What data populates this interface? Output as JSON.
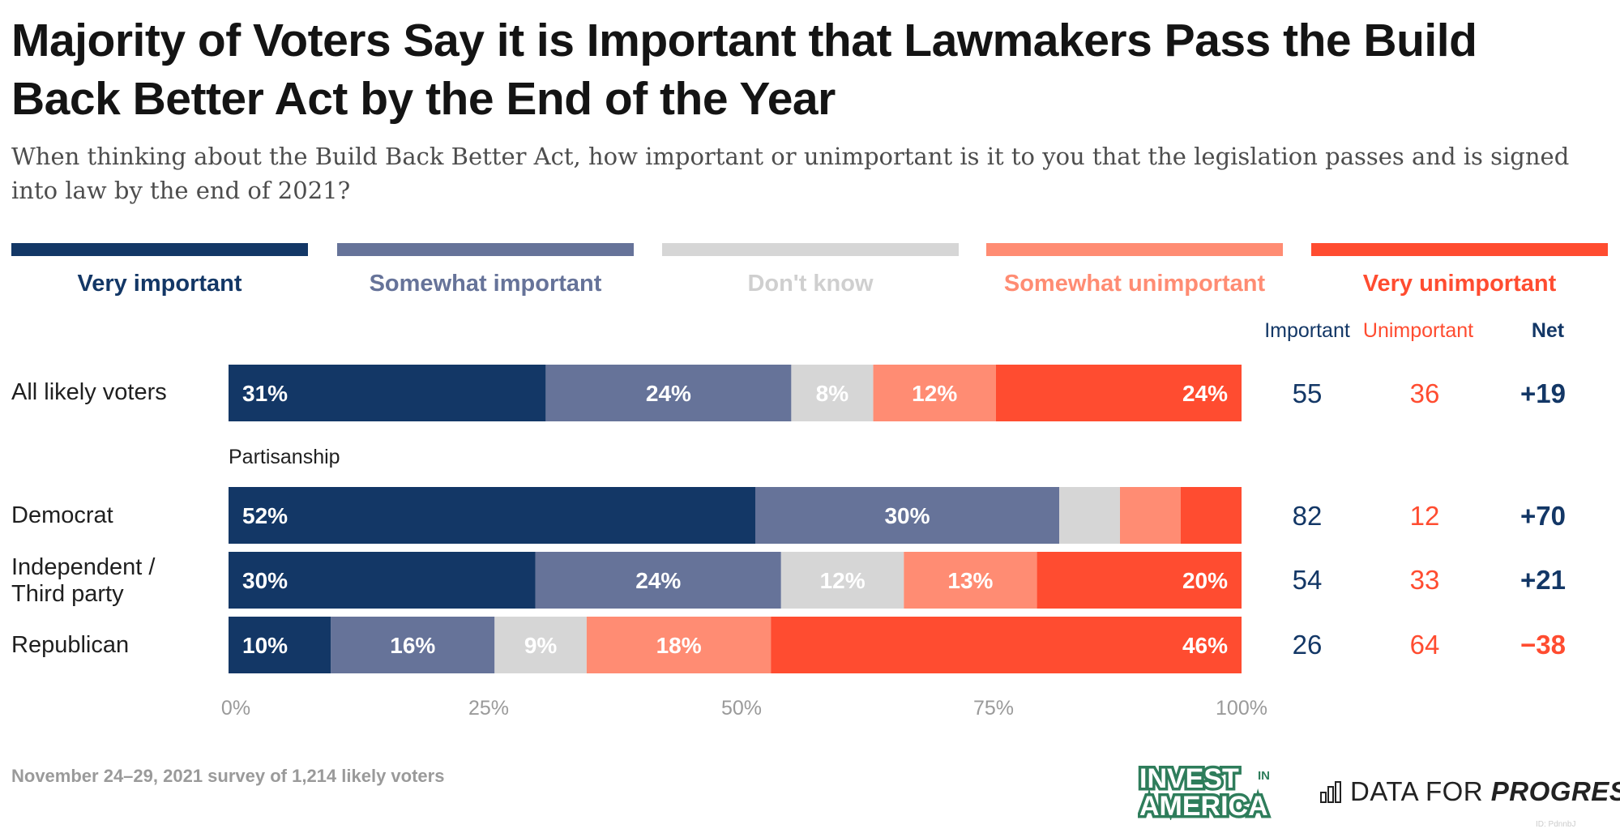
{
  "title": "Majority of Voters Say it is Important that Lawmakers Pass the Build Back Better Act by the End of the Year",
  "subtitle": "When thinking about the Build Back Better Act, how important or unimportant is it to you that the legislation passes and is signed into law by the end of 2021?",
  "columns": {
    "important": "Important",
    "unimportant": "Unimportant",
    "net": "Net"
  },
  "group_label": "Partisanship",
  "footer": "November 24–29, 2021 survey of 1,214 likely voters",
  "logos": {
    "invest_top": "INVEST",
    "invest_in": "IN",
    "invest_bottom": "AMERICA",
    "dfp_plain": "DATA FOR ",
    "dfp_bold": "PROGRESS"
  },
  "id_mark": "ID: PdnnbJ",
  "colors": {
    "very_important": "#133766",
    "somewhat_important": "#667399",
    "dont_know": "#d6d6d6",
    "somewhat_unimportant": "#ff8c73",
    "very_unimportant": "#ff4c30"
  },
  "chart_data": {
    "type": "bar",
    "orientation": "horizontal",
    "stacked": true,
    "xlim": [
      0,
      100
    ],
    "x_ticks": [
      "0%",
      "25%",
      "50%",
      "75%",
      "100%"
    ],
    "categories": [
      "All likely voters",
      "Democrat",
      "Independent / Third party",
      "Republican"
    ],
    "series": [
      {
        "name": "Very important",
        "values": [
          31,
          52,
          30,
          10
        ],
        "labels": [
          "31%",
          "52%",
          "30%",
          "10%"
        ]
      },
      {
        "name": "Somewhat important",
        "values": [
          24,
          30,
          24,
          16
        ],
        "labels": [
          "24%",
          "30%",
          "24%",
          "16%"
        ]
      },
      {
        "name": "Don't know",
        "values": [
          8,
          6,
          12,
          9
        ],
        "labels": [
          "8%",
          "",
          "12%",
          "9%"
        ]
      },
      {
        "name": "Somewhat unimportant",
        "values": [
          12,
          6,
          13,
          18
        ],
        "labels": [
          "12%",
          "",
          "13%",
          "18%"
        ]
      },
      {
        "name": "Very unimportant",
        "values": [
          24,
          6,
          20,
          46
        ],
        "labels": [
          "24%",
          "",
          "20%",
          "46%"
        ]
      }
    ],
    "summary": {
      "important": [
        "55",
        "82",
        "54",
        "26"
      ],
      "unimportant": [
        "36",
        "12",
        "33",
        "64"
      ],
      "net": [
        "+19",
        "+70",
        "+21",
        "−38"
      ]
    }
  }
}
